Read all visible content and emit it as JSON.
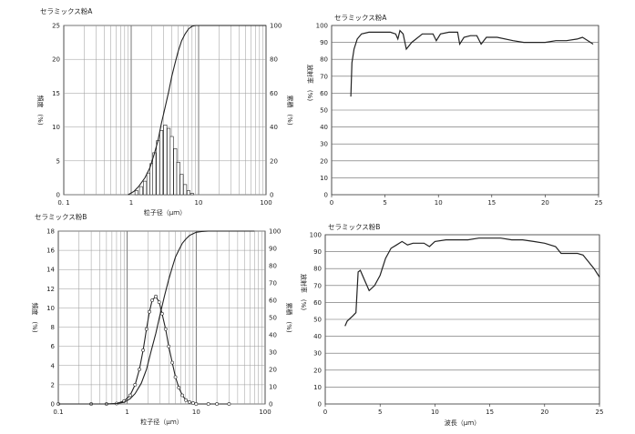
{
  "chart_data": [
    {
      "type": "line",
      "title": "セラミックス粉A",
      "xlabel": "粒子径（μｍ）",
      "ylabel_left": "頻度　(%)",
      "ylabel_right": "累積　(%)",
      "x_scale": "log",
      "xlim": [
        0.1,
        100
      ],
      "ylim_left": [
        0,
        25
      ],
      "ylim_right": [
        0,
        100
      ],
      "x_ticks": [
        "0.1",
        "1",
        "10",
        "100"
      ],
      "y_ticks_left": [
        "0",
        "5",
        "10",
        "15",
        "20",
        "25"
      ],
      "y_ticks_right": [
        "0",
        "20",
        "40",
        "60",
        "80",
        "100"
      ],
      "series": [
        {
          "axis": "left",
          "style": "histogram",
          "x": [
            1.2,
            1.4,
            1.6,
            1.8,
            2.0,
            2.2,
            2.5,
            2.8,
            3.2,
            3.6,
            4.0,
            4.5,
            5.0,
            5.6,
            6.3,
            7.1,
            8.0
          ],
          "y": [
            0.6,
            1.2,
            2.0,
            3.2,
            4.6,
            6.2,
            8.0,
            9.5,
            10.3,
            9.8,
            8.6,
            6.8,
            4.8,
            3.0,
            1.5,
            0.6,
            0.2
          ]
        },
        {
          "axis": "right",
          "style": "line",
          "x": [
            0.9,
            1.1,
            1.3,
            1.6,
            1.9,
            2.2,
            2.5,
            2.8,
            3.2,
            3.6,
            4.0,
            4.5,
            5.0,
            5.6,
            6.3,
            7.1,
            8.0,
            9.0,
            10,
            20,
            50,
            100
          ],
          "y": [
            0,
            2,
            5,
            10,
            16,
            24,
            32,
            42,
            52,
            61,
            70,
            78,
            85,
            91,
            95,
            98,
            99.5,
            100,
            100,
            100,
            100,
            100
          ]
        }
      ]
    },
    {
      "type": "line",
      "title": "セラミックス粉A",
      "xlabel": "",
      "ylabel": "放射率　(%)",
      "xlim": [
        0,
        25
      ],
      "ylim": [
        0,
        100
      ],
      "x_ticks": [
        "0",
        "5",
        "10",
        "15",
        "20",
        "25"
      ],
      "y_ticks": [
        "0",
        "10",
        "20",
        "30",
        "40",
        "50",
        "60",
        "70",
        "80",
        "90",
        "100"
      ],
      "series": [
        {
          "x": [
            1.8,
            1.9,
            2.1,
            2.4,
            2.8,
            3.5,
            4.5,
            5.5,
            6.0,
            6.2,
            6.4,
            6.7,
            7.0,
            7.5,
            8.5,
            9.5,
            9.8,
            10.2,
            11.0,
            11.8,
            12.0,
            12.4,
            13.0,
            13.6,
            14.0,
            14.5,
            15.5,
            17.0,
            18.0,
            19.0,
            20.0,
            21.0,
            22.0,
            23.0,
            23.5,
            24.0,
            24.5
          ],
          "y": [
            58,
            78,
            86,
            92,
            95,
            96,
            96,
            96,
            95,
            92,
            97,
            95,
            86,
            90,
            95,
            95,
            91,
            95,
            96,
            96,
            89,
            93,
            94,
            94,
            89,
            93,
            93,
            91,
            90,
            90,
            90,
            91,
            91,
            92,
            93,
            91,
            89
          ]
        }
      ]
    },
    {
      "type": "line",
      "title": "セラミックス粉B",
      "xlabel": "粒子径（μｍ）",
      "ylabel_left": "頻度　(%)",
      "ylabel_right": "累積　(%)",
      "x_scale": "log",
      "xlim": [
        0.1,
        100
      ],
      "ylim_left": [
        0,
        18
      ],
      "ylim_right": [
        0,
        100
      ],
      "x_ticks": [
        "0.1",
        "1",
        "10",
        "100"
      ],
      "y_ticks_left": [
        "0",
        "2",
        "4",
        "6",
        "8",
        "10",
        "12",
        "14",
        "16",
        "18"
      ],
      "y_ticks_right": [
        "0",
        "10",
        "20",
        "30",
        "40",
        "50",
        "60",
        "70",
        "80",
        "90",
        "100"
      ],
      "series": [
        {
          "axis": "left",
          "style": "line-markers",
          "x": [
            0.1,
            0.3,
            0.5,
            0.7,
            0.9,
            1.1,
            1.3,
            1.5,
            1.7,
            1.9,
            2.1,
            2.3,
            2.6,
            2.9,
            3.2,
            3.6,
            4.0,
            4.5,
            5.0,
            5.6,
            6.3,
            7.1,
            8.0,
            9.0,
            10,
            15,
            20,
            30
          ],
          "y": [
            0,
            0,
            0,
            0.05,
            0.3,
            0.9,
            2.0,
            3.6,
            5.6,
            7.8,
            9.6,
            10.8,
            11.2,
            10.6,
            9.4,
            7.8,
            6.0,
            4.3,
            2.8,
            1.7,
            0.9,
            0.4,
            0.2,
            0.1,
            0,
            0,
            0,
            0
          ]
        },
        {
          "axis": "right",
          "style": "line",
          "x": [
            0.1,
            0.3,
            0.5,
            0.7,
            0.9,
            1.1,
            1.3,
            1.6,
            1.9,
            2.2,
            2.6,
            3.0,
            3.5,
            4.0,
            4.5,
            5.0,
            5.6,
            6.3,
            7.1,
            8.0,
            9.0,
            10,
            12,
            15,
            20,
            30,
            50,
            70
          ],
          "y": [
            0,
            0,
            0,
            0.2,
            1,
            3,
            6,
            12,
            20,
            30,
            41,
            52,
            63,
            72,
            79,
            85,
            89,
            93,
            95.5,
            97.5,
            98.5,
            99.3,
            99.8,
            100,
            100,
            100,
            100,
            100
          ]
        }
      ]
    },
    {
      "type": "line",
      "title": "セラミックス粉B",
      "xlabel": "波長（μｍ）",
      "ylabel": "放射率　(%)",
      "xlim": [
        0,
        25
      ],
      "ylim": [
        0,
        100
      ],
      "x_ticks": [
        "0",
        "5",
        "10",
        "15",
        "20",
        "25"
      ],
      "y_ticks": [
        "0",
        "10",
        "20",
        "30",
        "40",
        "50",
        "60",
        "70",
        "80",
        "90",
        "100"
      ],
      "series": [
        {
          "x": [
            1.8,
            2.0,
            2.5,
            2.8,
            3.0,
            3.2,
            3.6,
            4.0,
            4.5,
            5.0,
            5.5,
            6.0,
            6.5,
            7.0,
            7.5,
            8.0,
            8.5,
            9.0,
            9.5,
            10,
            11,
            12,
            13,
            14,
            15,
            16,
            17,
            18,
            19,
            20,
            21,
            21.5,
            22,
            22.5,
            23,
            23.5,
            24,
            24.5,
            25
          ],
          "y": [
            46,
            49,
            52,
            54,
            78,
            79,
            73,
            67,
            70,
            76,
            86,
            92,
            94,
            96,
            94,
            95,
            95,
            95,
            93,
            96,
            97,
            97,
            97,
            98,
            98,
            98,
            97,
            97,
            96,
            95,
            93,
            89,
            89,
            89,
            89,
            88,
            84,
            80,
            75
          ]
        }
      ]
    }
  ]
}
